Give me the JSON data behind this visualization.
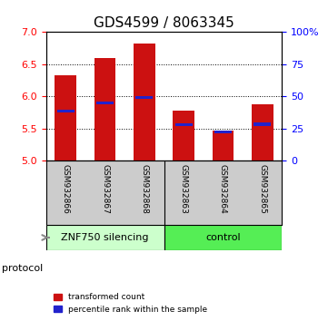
{
  "title": "GDS4599 / 8063345",
  "samples": [
    "GSM932866",
    "GSM932867",
    "GSM932868",
    "GSM932863",
    "GSM932864",
    "GSM932865"
  ],
  "group_labels": [
    "ZNF750 silencing",
    "control"
  ],
  "bar_tops": [
    6.33,
    6.6,
    6.82,
    5.77,
    5.47,
    5.87
  ],
  "blue_markers": [
    5.775,
    5.9,
    5.985,
    5.555,
    5.45,
    5.565
  ],
  "bar_bottom": 5.0,
  "ylim_left": [
    5,
    7
  ],
  "ylim_right": [
    0,
    100
  ],
  "yticks_left": [
    5,
    5.5,
    6,
    6.5,
    7
  ],
  "yticks_right": [
    0,
    25,
    50,
    75,
    100
  ],
  "ytick_labels_right": [
    "0",
    "25",
    "50",
    "75",
    "100%"
  ],
  "bar_color": "#cc1111",
  "blue_color": "#2222cc",
  "background_samples": "#cccccc",
  "group1_color": "#ccffcc",
  "group2_color": "#55ee55",
  "protocol_label": "protocol",
  "title_fontsize": 11,
  "bar_width": 0.55,
  "legend_labels": [
    "transformed count",
    "percentile rank within the sample"
  ]
}
